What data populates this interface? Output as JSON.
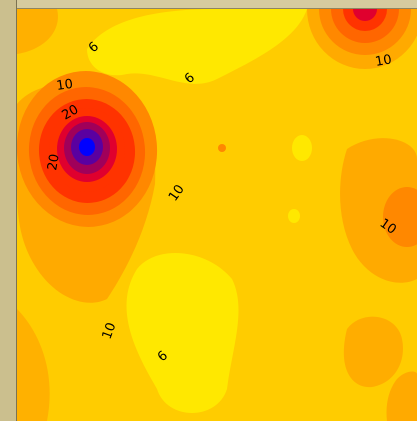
{
  "chart_data": {
    "type": "heatmap",
    "subtype": "filled-contour",
    "title": "",
    "xlabel": "",
    "ylabel": "",
    "grid": false,
    "legend": "none",
    "colormap": [
      "#ffe800",
      "#ffcc00",
      "#ffaa00",
      "#ff8800",
      "#ff6600",
      "#ff3300",
      "#e0002e",
      "#a0005a",
      "#5a00a0",
      "#0000ff"
    ],
    "contour_levels": [
      6,
      10,
      14,
      18,
      22,
      26,
      30,
      34
    ],
    "contour_labels": [
      {
        "text": "6",
        "value": 6
      },
      {
        "text": "6",
        "value": 6
      },
      {
        "text": "10",
        "value": 10
      },
      {
        "text": "20",
        "value": 20
      },
      {
        "text": "20",
        "value": 20
      },
      {
        "text": "10",
        "value": 10
      },
      {
        "text": "10",
        "value": 10
      },
      {
        "text": "10",
        "value": 10
      },
      {
        "text": "10",
        "value": 10
      },
      {
        "text": "6",
        "value": 6
      }
    ],
    "hotspots": [
      {
        "name": "peak-left",
        "value": 38
      },
      {
        "name": "peak-top-right",
        "value": 24
      }
    ]
  },
  "colors": {
    "frame": "#cdc190",
    "frame_edge": "#7c7351",
    "low": "#ffe800",
    "base": "#ffcc00",
    "high": "#0000ff"
  }
}
